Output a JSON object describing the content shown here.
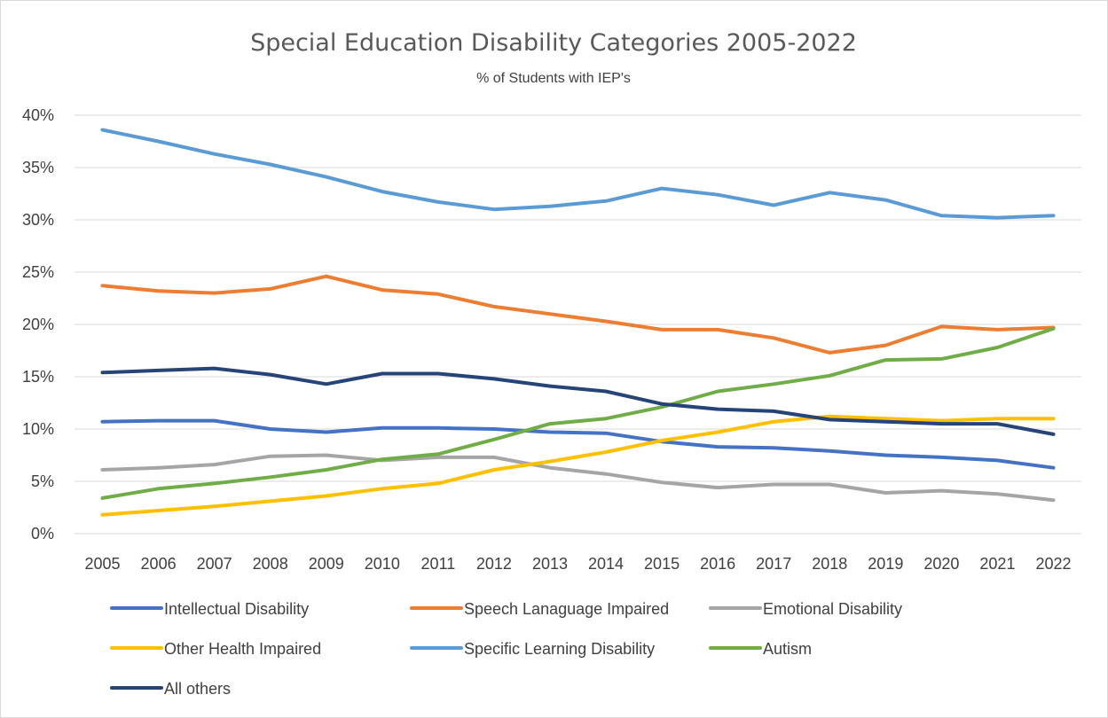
{
  "chart_data": {
    "type": "line",
    "title": "Special Education Disability Categories 2005-2022",
    "subtitle": "% of  Students with IEP's",
    "xlabel": "",
    "ylabel": "",
    "ylim": [
      0,
      40
    ],
    "y_ticks": [
      "0%",
      "5%",
      "10%",
      "15%",
      "20%",
      "25%",
      "30%",
      "35%",
      "40%"
    ],
    "grid": true,
    "legend_position": "bottom",
    "x": [
      "2005",
      "2006",
      "2007",
      "2008",
      "2009",
      "2010",
      "2011",
      "2012",
      "2013",
      "2014",
      "2015",
      "2016",
      "2017",
      "2018",
      "2019",
      "2020",
      "2021",
      "2022"
    ],
    "series": [
      {
        "name": "Intellectual Disability",
        "color": "#4472c4",
        "values": [
          10.7,
          10.8,
          10.8,
          10.0,
          9.7,
          10.1,
          10.1,
          10.0,
          9.7,
          9.6,
          8.8,
          8.3,
          8.2,
          7.9,
          7.5,
          7.3,
          7.0,
          6.3
        ]
      },
      {
        "name": "Speech Lanaguage Impaired",
        "color": "#ed7d31",
        "values": [
          23.7,
          23.2,
          23.0,
          23.4,
          24.6,
          23.3,
          22.9,
          21.7,
          21.0,
          20.3,
          19.5,
          19.5,
          18.7,
          17.3,
          18.0,
          19.8,
          19.5,
          19.7
        ]
      },
      {
        "name": "Emotional Disability",
        "color": "#a5a5a5",
        "values": [
          6.1,
          6.3,
          6.6,
          7.4,
          7.5,
          7.0,
          7.3,
          7.3,
          6.3,
          5.7,
          4.9,
          4.4,
          4.7,
          4.7,
          3.9,
          4.1,
          3.8,
          3.2
        ]
      },
      {
        "name": "Other Health Impaired",
        "color": "#ffc000",
        "values": [
          1.8,
          2.2,
          2.6,
          3.1,
          3.6,
          4.3,
          4.8,
          6.1,
          6.9,
          7.8,
          8.9,
          9.7,
          10.7,
          11.2,
          11.0,
          10.8,
          11.0,
          11.0
        ]
      },
      {
        "name": "Specific Learning Disability",
        "color": "#5b9bd5",
        "values": [
          38.6,
          37.5,
          36.3,
          35.3,
          34.1,
          32.7,
          31.7,
          31.0,
          31.3,
          31.8,
          33.0,
          32.4,
          31.4,
          32.6,
          31.9,
          30.4,
          30.2,
          30.4
        ]
      },
      {
        "name": "Autism",
        "color": "#70ad47",
        "values": [
          3.4,
          4.3,
          4.8,
          5.4,
          6.1,
          7.1,
          7.6,
          9.0,
          10.5,
          11.0,
          12.1,
          13.6,
          14.3,
          15.1,
          16.6,
          16.7,
          17.8,
          19.6
        ]
      },
      {
        "name": "All others",
        "color": "#264478",
        "values": [
          15.4,
          15.6,
          15.8,
          15.2,
          14.3,
          15.3,
          15.3,
          14.8,
          14.1,
          13.6,
          12.4,
          11.9,
          11.7,
          10.9,
          10.7,
          10.5,
          10.5,
          9.5
        ]
      }
    ]
  }
}
